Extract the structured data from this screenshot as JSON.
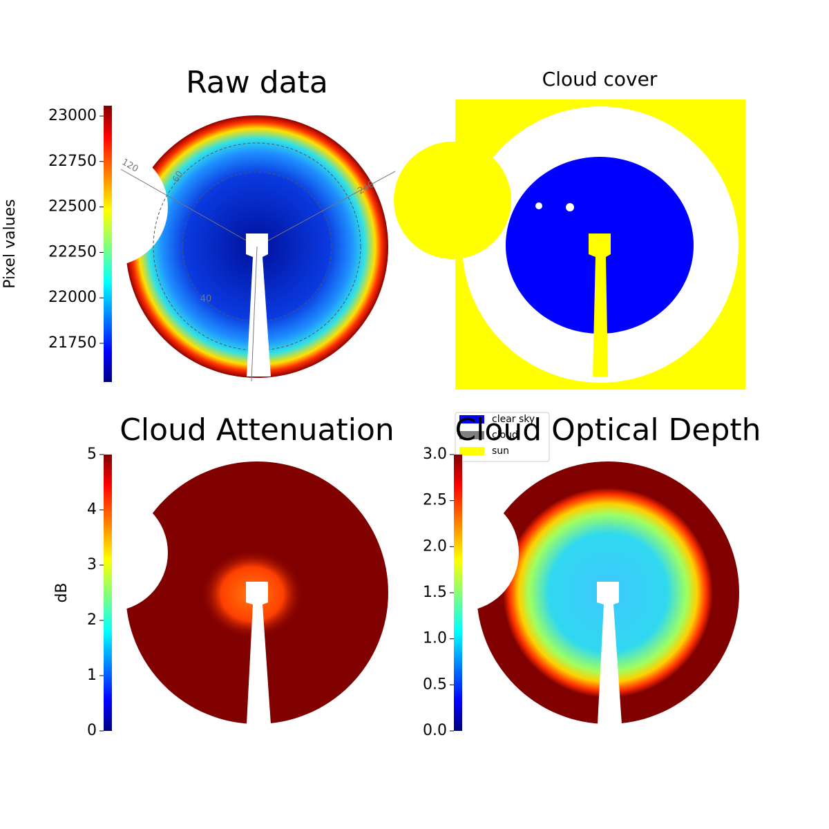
{
  "chart_data": [
    {
      "type": "image",
      "title": "Raw data",
      "ylabel": "Pixel values",
      "colormap": "jet",
      "ylim": [
        21537,
        23057
      ],
      "yticks": [
        21750,
        22000,
        22250,
        22500,
        22750,
        23000
      ],
      "annotations": [
        "120",
        "60",
        "240",
        "40"
      ]
    },
    {
      "type": "image",
      "title": "Cloud cover",
      "legend": [
        {
          "name": "clear sky",
          "color": "#0000ff"
        },
        {
          "name": "cloud",
          "color": "#808080"
        },
        {
          "name": "sun",
          "color": "#ffff00"
        }
      ]
    },
    {
      "type": "image",
      "title": "Cloud Attenuation",
      "ylabel": "dB",
      "colormap": "jet",
      "ylim": [
        0,
        5
      ],
      "yticks": [
        0,
        1,
        2,
        3,
        4,
        5
      ]
    },
    {
      "type": "image",
      "title": "Cloud Optical Depth",
      "colormap": "jet",
      "ylim": [
        0,
        3
      ],
      "yticks": [
        {
          "value": 0,
          "label": "0.0"
        },
        0.5,
        {
          "value": 1,
          "label": "1.0"
        },
        1.5,
        {
          "value": 2,
          "label": "2.0"
        },
        2.5,
        {
          "value": 3,
          "label": "3.0"
        }
      ]
    }
  ]
}
